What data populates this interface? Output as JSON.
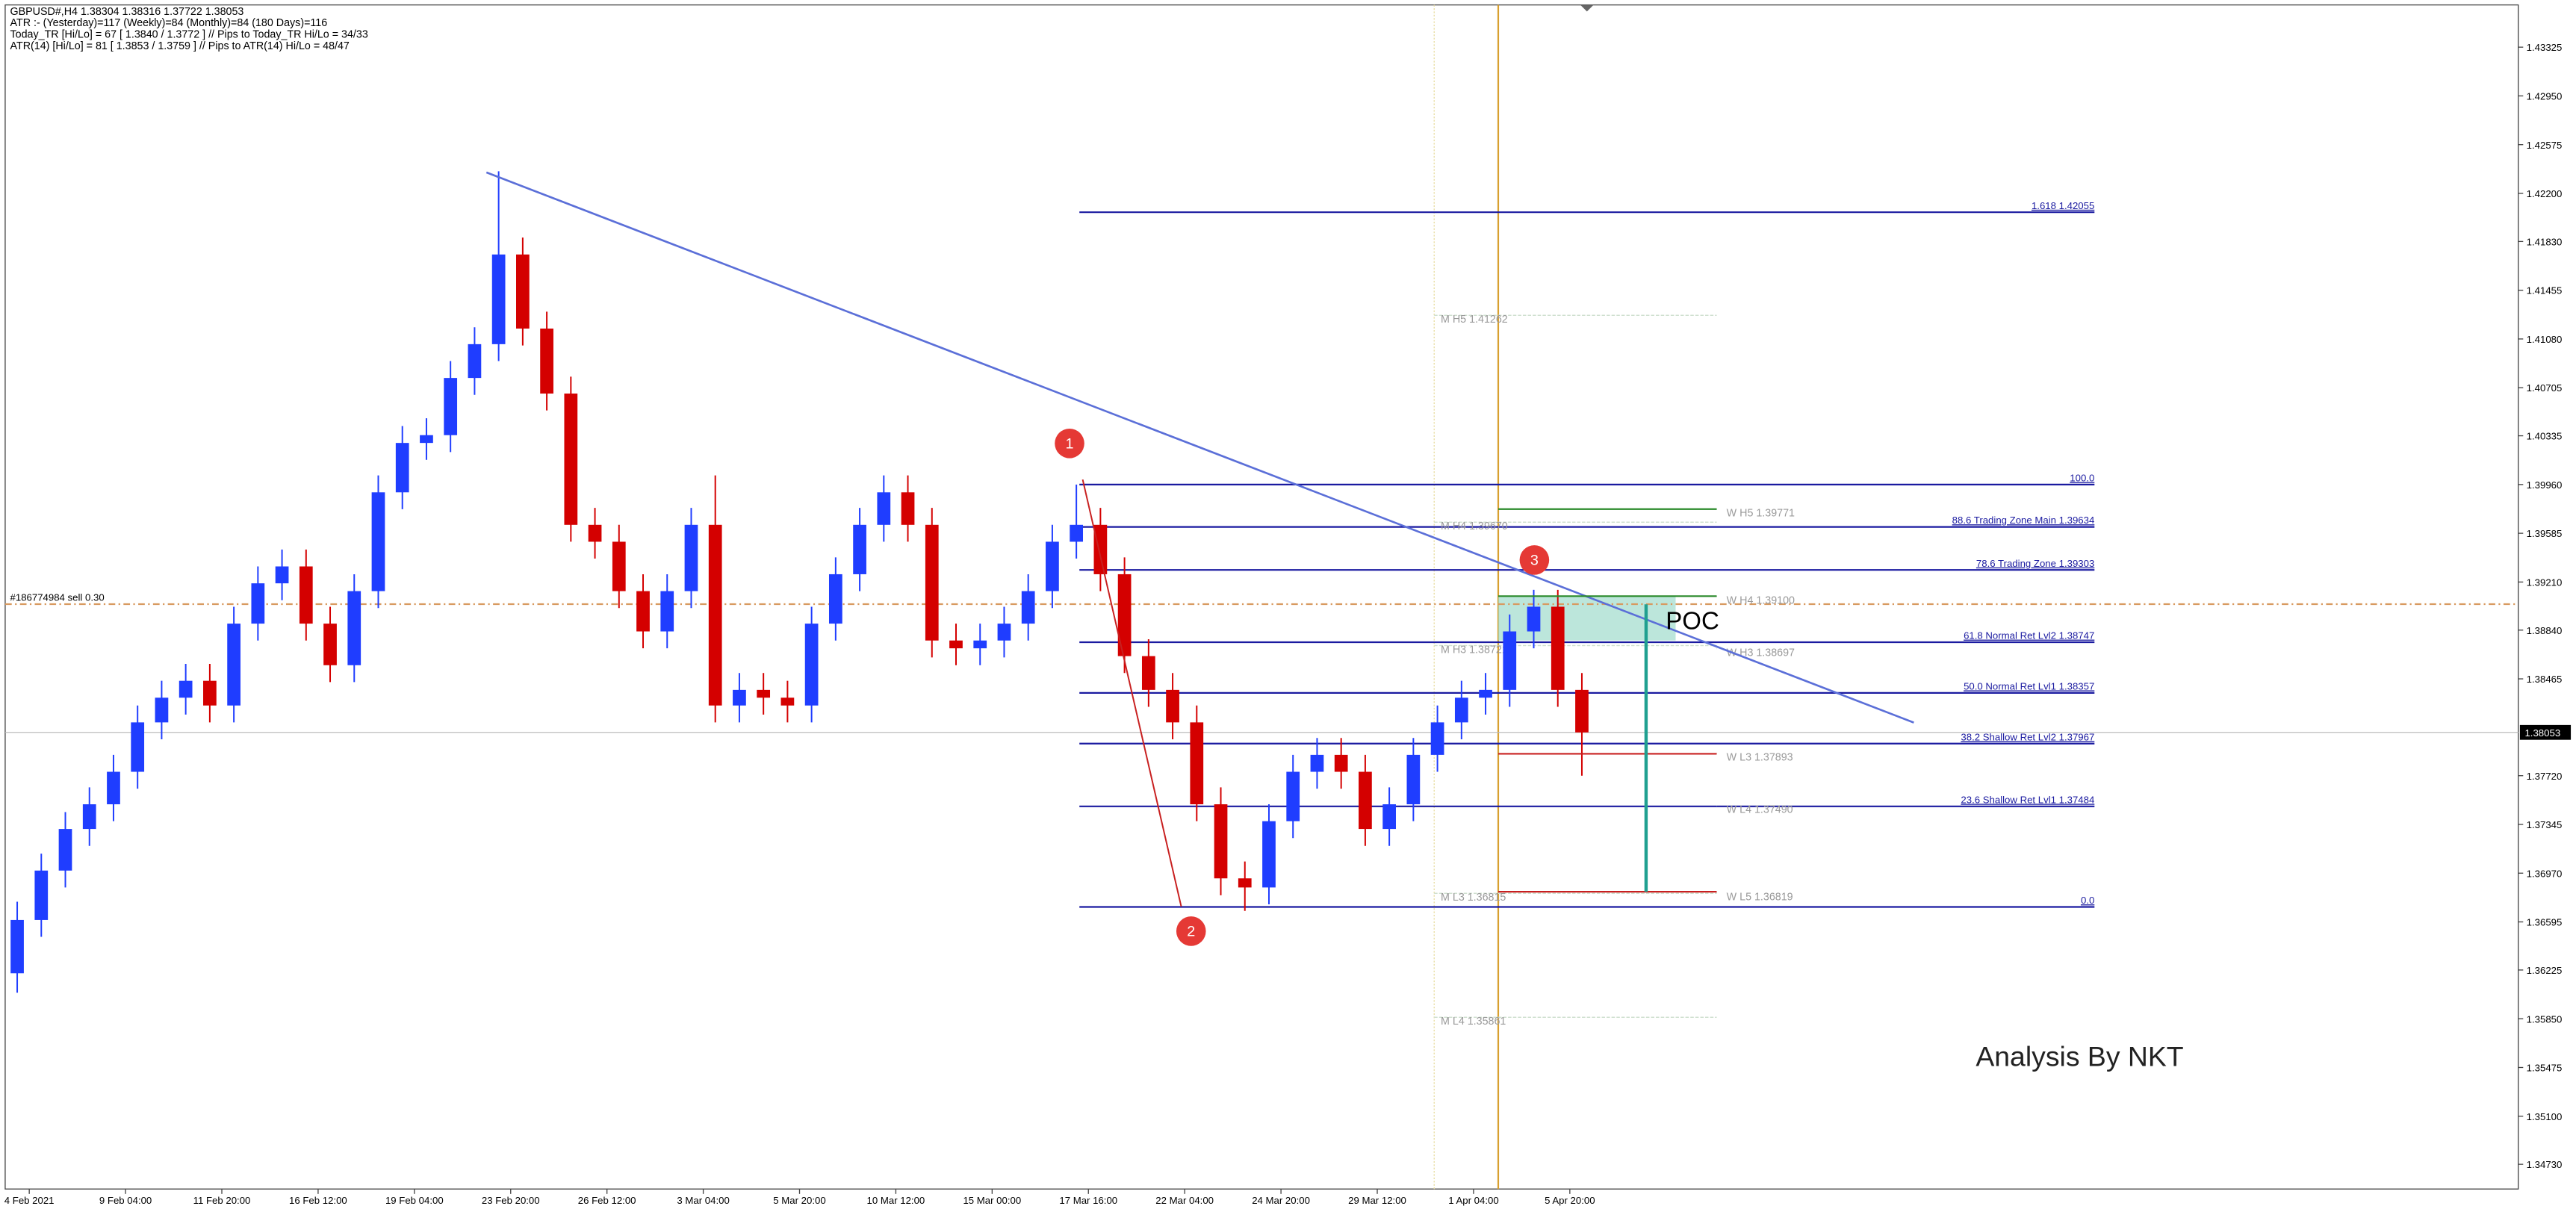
{
  "chart_data": {
    "type": "candlestick",
    "info_lines": [
      "GBPUSD#,H4  1.38304 1.38316 1.37722 1.38053",
      "ATR :- (Yesterday)=117    (Weekly)=84    (Monthly)=84    (180 Days)=116",
      "Today_TR [Hi/Lo] = 67 [ 1.3840 / 1.3772 ]  // Pips to Today_TR Hi/Lo  = 34/33",
      "ATR(14)    [Hi/Lo] = 81 [ 1.3853 / 1.3759 ]  // Pips to ATR(14) Hi/Lo  = 48/47"
    ],
    "xlim": [
      0,
      104.4
    ],
    "xticks": [
      {
        "value": 1,
        "label": "4 Feb 2021"
      },
      {
        "value": 5,
        "label": "9 Feb 04:00"
      },
      {
        "value": 9,
        "label": "11 Feb 20:00"
      },
      {
        "value": 13,
        "label": "16 Feb 12:00"
      },
      {
        "value": 17,
        "label": "19 Feb 04:00"
      },
      {
        "value": 21,
        "label": "23 Feb 20:00"
      },
      {
        "value": 25,
        "label": "26 Feb 12:00"
      },
      {
        "value": 29,
        "label": "3 Mar 04:00"
      },
      {
        "value": 33,
        "label": "5 Mar 20:00"
      },
      {
        "value": 37,
        "label": "10 Mar 12:00"
      },
      {
        "value": 41,
        "label": "15 Mar 00:00"
      },
      {
        "value": 45,
        "label": "17 Mar 16:00"
      },
      {
        "value": 49,
        "label": "22 Mar 04:00"
      },
      {
        "value": 53,
        "label": "24 Mar 20:00"
      },
      {
        "value": 57,
        "label": "29 Mar 12:00"
      },
      {
        "value": 61,
        "label": "1 Apr 04:00"
      },
      {
        "value": 65,
        "label": "5 Apr 20:00"
      }
    ],
    "ylim": [
      1.3454,
      1.4365
    ],
    "yticks": [
      1.43325,
      {
        "value": 1.4295,
        "label": "1.42950"
      },
      1.42575,
      {
        "value": 1.422,
        "label": "1.42200"
      },
      {
        "value": 1.4183,
        "label": "1.41830"
      },
      1.41455,
      {
        "value": 1.4108,
        "label": "1.41080"
      },
      1.40705,
      1.40335,
      {
        "value": 1.3996,
        "label": "1.39960"
      },
      1.39585,
      {
        "value": 1.3921,
        "label": "1.39210"
      },
      {
        "value": 1.3884,
        "label": "1.38840"
      },
      1.38465,
      {
        "value": 1.3772,
        "label": "1.37720"
      },
      1.37345,
      {
        "value": 1.3697,
        "label": "1.36970"
      },
      1.36595,
      1.36225,
      {
        "value": 1.3585,
        "label": "1.35850"
      },
      1.35475,
      {
        "value": 1.351,
        "label": "1.35100"
      },
      {
        "value": 1.3473,
        "label": "1.34730"
      }
    ],
    "up_color": "#1f3dff",
    "down_color": "#d40000",
    "open": [
      1.362,
      1.3661,
      1.3699,
      1.3731,
      1.375,
      1.3775,
      1.3813,
      1.3832,
      1.3845,
      1.3826,
      1.3889,
      1.392,
      1.3933,
      1.3889,
      1.3857,
      1.3914,
      1.399,
      1.4028,
      1.4034,
      1.4078,
      1.4104,
      1.4173,
      1.4116,
      1.4066,
      1.3965,
      1.3952,
      1.3914,
      1.3883,
      1.3914,
      1.3965,
      1.3826,
      1.3838,
      1.3832,
      1.3826,
      1.3889,
      1.3927,
      1.3965,
      1.399,
      1.3965,
      1.3876,
      1.387,
      1.3876,
      1.3889,
      1.3914,
      1.3952,
      1.3965,
      1.3927,
      1.3864,
      1.3838,
      1.3813,
      1.375,
      1.3693,
      1.3686,
      1.3737,
      1.3775,
      1.3788,
      1.3775,
      1.3731,
      1.375,
      1.3788,
      1.3813,
      1.3832,
      1.3838,
      1.3883,
      1.3902,
      1.3838
    ],
    "high": [
      1.3675,
      1.3712,
      1.3744,
      1.3763,
      1.3788,
      1.3826,
      1.3845,
      1.3858,
      1.3858,
      1.3902,
      1.3933,
      1.3946,
      1.3946,
      1.3902,
      1.3927,
      1.4003,
      1.4041,
      1.4047,
      1.4091,
      1.4117,
      1.4237,
      1.4186,
      1.4129,
      1.4079,
      1.3978,
      1.3965,
      1.3927,
      1.3927,
      1.3978,
      1.4003,
      1.3851,
      1.3851,
      1.3845,
      1.3902,
      1.394,
      1.3978,
      1.4003,
      1.4003,
      1.3978,
      1.3889,
      1.3889,
      1.3902,
      1.3927,
      1.3965,
      1.3996,
      1.3978,
      1.394,
      1.3877,
      1.3851,
      1.3826,
      1.3763,
      1.3706,
      1.375,
      1.3788,
      1.3801,
      1.3801,
      1.3788,
      1.3763,
      1.3801,
      1.3826,
      1.3845,
      1.3851,
      1.3896,
      1.3915,
      1.3915,
      1.3851
    ],
    "low": [
      1.3605,
      1.3648,
      1.3686,
      1.3718,
      1.3737,
      1.3762,
      1.38,
      1.3819,
      1.3813,
      1.3813,
      1.3876,
      1.3907,
      1.3876,
      1.3844,
      1.3844,
      1.3901,
      1.3977,
      1.4015,
      1.4021,
      1.4065,
      1.4091,
      1.4103,
      1.4053,
      1.3952,
      1.3939,
      1.3901,
      1.387,
      1.387,
      1.3901,
      1.3813,
      1.3813,
      1.3819,
      1.3813,
      1.3813,
      1.3876,
      1.3914,
      1.3952,
      1.3952,
      1.3863,
      1.3857,
      1.3857,
      1.3863,
      1.3876,
      1.3901,
      1.3939,
      1.3914,
      1.3851,
      1.3825,
      1.38,
      1.3737,
      1.368,
      1.3668,
      1.3673,
      1.3724,
      1.3762,
      1.3762,
      1.3718,
      1.3718,
      1.3737,
      1.3775,
      1.38,
      1.3819,
      1.3825,
      1.387,
      1.3825,
      1.3772
    ],
    "close": [
      1.3661,
      1.3699,
      1.3731,
      1.375,
      1.3775,
      1.3813,
      1.3832,
      1.3845,
      1.3826,
      1.3889,
      1.392,
      1.3933,
      1.3889,
      1.3857,
      1.3914,
      1.399,
      1.4028,
      1.4034,
      1.4078,
      1.4104,
      1.4173,
      1.4116,
      1.4066,
      1.3965,
      1.3952,
      1.3914,
      1.3883,
      1.3914,
      1.3965,
      1.3826,
      1.3838,
      1.3832,
      1.3826,
      1.3889,
      1.3927,
      1.3965,
      1.399,
      1.3965,
      1.3876,
      1.387,
      1.3876,
      1.3889,
      1.3914,
      1.3952,
      1.3965,
      1.3927,
      1.3864,
      1.3838,
      1.3813,
      1.375,
      1.3693,
      1.3686,
      1.3737,
      1.3775,
      1.3788,
      1.3775,
      1.3731,
      1.375,
      1.3788,
      1.3813,
      1.3832,
      1.3838,
      1.3883,
      1.3902,
      1.3838,
      1.38053
    ],
    "last_price": 1.38053,
    "order_line": {
      "label": "#186774984 sell 0.30",
      "value": 1.3904
    },
    "levels": [
      {
        "label": "1.618 1.42055",
        "value": 1.42055
      },
      {
        "label": "100.0",
        "value": 1.3996
      },
      {
        "label": "88.6 Trading Zone Main 1.39634",
        "value": 1.39634
      },
      {
        "label": "78.6 Trading Zone 1.39303",
        "value": 1.39303
      },
      {
        "label": "61.8 Normal Ret Lvl2 1.38747",
        "value": 1.38747
      },
      {
        "label": "50.0 Normal Ret Lvl1 1.38357",
        "value": 1.38357
      },
      {
        "label": "38.2 Shallow Ret Lvl2 1.37967",
        "value": 1.37967
      },
      {
        "label": "23.6 Shallow Ret Lvl1 1.37484",
        "value": 1.37484
      },
      {
        "label": "0.0",
        "value": 1.3671
      }
    ],
    "pivots": [
      {
        "label": "M  H5 1.41262",
        "value": 1.41262,
        "side": "M"
      },
      {
        "label": "M  H4 1.39670",
        "value": 1.3967,
        "side": "M"
      },
      {
        "label": "M  H3 1.38721",
        "value": 1.38721,
        "side": "M"
      },
      {
        "label": "M  L3 1.36815",
        "value": 1.36815,
        "side": "M"
      },
      {
        "label": "M  L4 1.35861",
        "value": 1.35861,
        "side": "M"
      },
      {
        "label": "W  H5 1.39771",
        "value": 1.39771,
        "side": "W"
      },
      {
        "label": "W  H4 1.39100",
        "value": 1.391,
        "side": "W"
      },
      {
        "label": "W  H3 1.38697",
        "value": 1.38697,
        "side": "W"
      },
      {
        "label": "W  L3 1.37893",
        "value": 1.37893,
        "side": "W"
      },
      {
        "label": "W  L4 1.37490",
        "value": 1.3749,
        "side": "W"
      },
      {
        "label": "W  L5 1.36819",
        "value": 1.36819,
        "side": "W"
      }
    ],
    "markers": [
      "1",
      "2",
      "3"
    ],
    "poc_label": "POC",
    "watermark": "Analysis By NKT"
  }
}
